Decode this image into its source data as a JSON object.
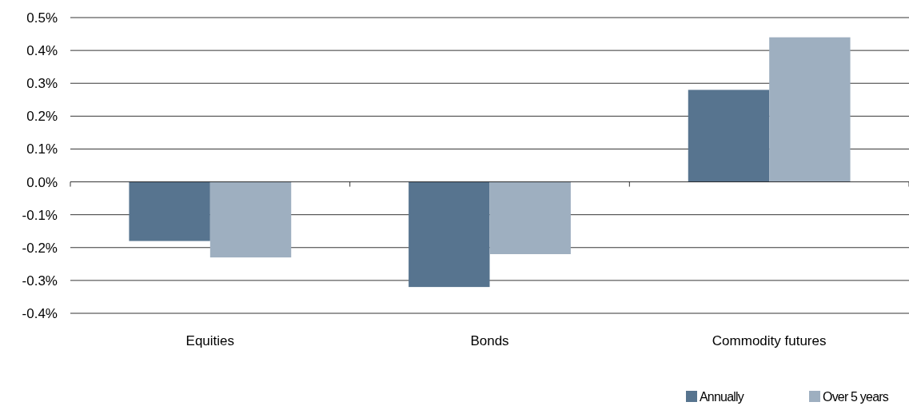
{
  "chart_data": {
    "type": "bar",
    "categories": [
      "Equities",
      "Bonds",
      "Commodity futures"
    ],
    "series": [
      {
        "name": "Annually",
        "color": "#57748f",
        "values": [
          -0.18,
          -0.32,
          0.28
        ]
      },
      {
        "name": "Over 5 years",
        "color": "#9eafc0",
        "values": [
          -0.23,
          -0.22,
          0.44
        ]
      }
    ],
    "ylim": [
      -0.4,
      0.5
    ],
    "yticks": [
      {
        "value": -0.4,
        "label": "-0.4%"
      },
      {
        "value": -0.3,
        "label": "-0.3%"
      },
      {
        "value": -0.2,
        "label": "-0.2%"
      },
      {
        "value": -0.1,
        "label": "-0.1%"
      },
      {
        "value": 0,
        "label": "0.0%"
      },
      {
        "value": 0.1,
        "label": "0.1%"
      },
      {
        "value": 0.2,
        "label": "0.2%"
      },
      {
        "value": 0.3,
        "label": "0.3%"
      },
      {
        "value": 0.4,
        "label": "0.4%"
      },
      {
        "value": 0.5,
        "label": "0.5%"
      }
    ],
    "grid": "y",
    "legend": "bottom right"
  }
}
